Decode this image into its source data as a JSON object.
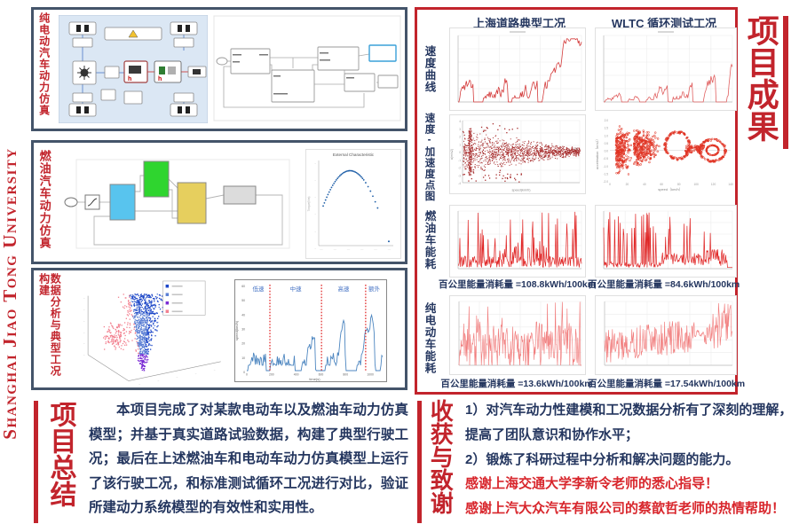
{
  "university": "Shanghai Jiao Tong University",
  "colors": {
    "red": "#c2242c",
    "thanks_red": "#d8262c",
    "navy": "#24365f",
    "box_border": "#44546a"
  },
  "left_panels": {
    "ev_sim_label": "纯电动汽车动力仿真",
    "fuel_sim_label": "燃油汽车动力仿真",
    "data_label": "数据分析与典型工况构建"
  },
  "summary": {
    "title": "项目总结",
    "body": "本项目完成了对某款电动车以及燃油车动力仿真模型；并基于真实道路试验数据，构建了典型行驶工况；最后在上述燃油车和电动车动力仿真模型上运行了该行驶工况，和标准测试循环工况进行对比，验证所建动力系统模型的有效性和实用性。"
  },
  "results": {
    "title": "项目成果",
    "col_headers": [
      "上海道路典型工况",
      "WLTC 循环测试工况"
    ],
    "row_labels": [
      "速度曲线",
      "速度-加速度点图",
      "燃油车能耗",
      "纯电动车能耗"
    ],
    "captions": {
      "fuel_shanghai": "百公里能量消耗量 =108.8kWh/100km",
      "fuel_wltc": "百公里能量消耗量 =84.6kWh/100km",
      "ev_shanghai": "百公里能量消耗量 =13.6kWh/100km",
      "ev_wltc": "百公里能量消耗量 =17.54kWh/100km"
    }
  },
  "harvest": {
    "title": "收获与致谢",
    "lines": [
      "1）对汽车动力性建模和工况数据分析有了深刻的理解，",
      "提高了团队意识和协作水平；",
      "2）锻炼了科研过程中分析和解决问题的能力。",
      "感谢上海交通大学李新令老师的悉心指导！",
      "感谢上汽大众汽车有限公司的蔡歆哲老师的热情帮助！"
    ]
  },
  "charts": {
    "shanghai_speed": {
      "kind": "speed",
      "seed": 11,
      "color": "#d43c3c"
    },
    "wltc_speed": {
      "kind": "speed",
      "seed": 7,
      "color": "#e06060",
      "trend": true
    },
    "shanghai_scatter": {
      "kind": "wedge",
      "seed": 3,
      "color": "#a83030",
      "ylab": "a(m/s2)",
      "xlab": "speed(km/h)",
      "xmax_tick": "120"
    },
    "wltc_scatter": {
      "kind": "rings",
      "seed": 5,
      "color": "#e03424",
      "ylab": "acceleration（m/s2）",
      "xlab": "speed（km/h）"
    },
    "shanghai_fuel": {
      "kind": "spikes",
      "seed": 21,
      "color": "#e02424"
    },
    "wltc_fuel": {
      "kind": "spikes2",
      "seed": 22,
      "color": "#e02424"
    },
    "shanghai_ev": {
      "kind": "evnoise",
      "seed": 31,
      "color": "#f17d7d"
    },
    "wltc_ev": {
      "kind": "evnoise2",
      "seed": 32,
      "color": "#f17d7d"
    },
    "ext_char": {
      "kind": "arc",
      "seed": 2,
      "color": "#1f5fa8",
      "title": "External Characteristic"
    },
    "cluster3d": {
      "kind": "cone",
      "seed": 9,
      "legend_colors": [
        "#1c46c8",
        "#5b7fd4",
        "#7a2bd4",
        "#f2808f"
      ]
    },
    "typical_cycle": {
      "kind": "segline",
      "seed": 13,
      "color": "#4d86c0",
      "segments": [
        "低速",
        "中速",
        "高速",
        "额外"
      ],
      "dividers": [
        0.17,
        0.55,
        0.875
      ],
      "ylab": "speed(km/h)",
      "xlab": "time(s)",
      "yticks": [
        "0",
        "10",
        "20",
        "30",
        "40",
        "50",
        "60"
      ],
      "xticks": [
        "0",
        "200",
        "400",
        "600",
        "800",
        "1000"
      ]
    }
  },
  "chart_data": [
    {
      "type": "line",
      "title": "上海道路典型工况 速度曲线",
      "ylabel": "speed",
      "color": "red"
    },
    {
      "type": "line",
      "title": "WLTC 循环测试工况 速度曲线",
      "ylabel": "speed",
      "color": "red"
    },
    {
      "type": "scatter",
      "title": "上海道路典型工况 速度-加速度点图",
      "xlabel": "speed(km/h)",
      "ylabel": "a(m/s2)",
      "xmax": 120
    },
    {
      "type": "scatter",
      "title": "WLTC 速度-加速度点图",
      "xlabel": "speed（km/h）",
      "ylabel": "acceleration（m/s2）",
      "ylim": [
        -2.0,
        2.0
      ],
      "xmax": 140
    },
    {
      "type": "line",
      "title": "上海道路典型工况 燃油车能耗",
      "summary_value": "108.8 kWh/100km"
    },
    {
      "type": "line",
      "title": "WLTC 燃油车能耗",
      "summary_value": "84.6 kWh/100km"
    },
    {
      "type": "line",
      "title": "上海道路典型工况 纯电动车能耗",
      "summary_value": "13.6 kWh/100km"
    },
    {
      "type": "line",
      "title": "WLTC 纯电动车能耗",
      "summary_value": "17.54 kWh/100km"
    },
    {
      "type": "scatter",
      "title": "External Characteristic",
      "shape": "inverted-U torque curve",
      "color": "blue"
    },
    {
      "type": "scatter",
      "title": "行驶数据3D聚类",
      "clusters": 4
    },
    {
      "type": "line",
      "title": "典型行驶工况",
      "segments": [
        "低速",
        "中速",
        "高速",
        "额外"
      ],
      "ylabel": "speed(km/h)",
      "xlabel": "time(s)",
      "ylim": [
        0,
        60
      ],
      "xlim": [
        0,
        1100
      ]
    }
  ]
}
